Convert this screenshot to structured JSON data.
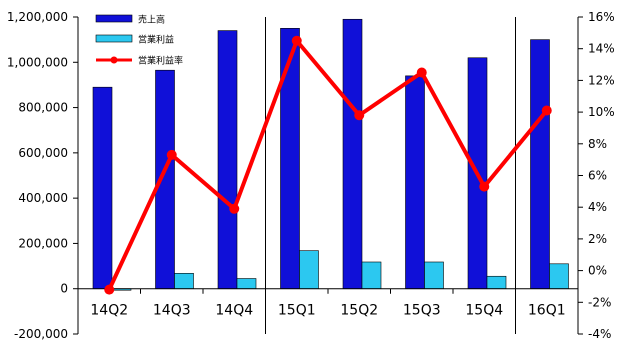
{
  "chart_data": {
    "type": "bar",
    "categories": [
      "14Q2",
      "14Q3",
      "14Q4",
      "15Q1",
      "15Q2",
      "15Q3",
      "15Q4",
      "16Q1"
    ],
    "series": [
      {
        "name": "売上高",
        "type": "bar",
        "axis": "left",
        "color": "#1010d8",
        "values": [
          890000,
          965000,
          1140000,
          1150000,
          1190000,
          940000,
          1020000,
          1100000
        ]
      },
      {
        "name": "営業利益",
        "type": "bar",
        "axis": "left",
        "color": "#2cc8f0",
        "values": [
          -5000,
          68000,
          45000,
          168000,
          118000,
          118000,
          55000,
          110000
        ]
      },
      {
        "name": "営業利益率",
        "type": "line",
        "axis": "right",
        "color": "#ff0000",
        "values": [
          -1.2,
          7.3,
          3.9,
          14.5,
          9.8,
          12.5,
          5.3,
          10.1
        ]
      }
    ],
    "y_left": {
      "ylim": [
        -200000,
        1200000
      ],
      "ticks": [
        -200000,
        0,
        200000,
        400000,
        600000,
        800000,
        1000000,
        1200000
      ],
      "tick_labels": [
        "-200,000",
        "0",
        "200,000",
        "400,000",
        "600,000",
        "800,000",
        "1,000,000",
        "1,200,000"
      ]
    },
    "y_right": {
      "ylim": [
        -4,
        16
      ],
      "ticks": [
        -4,
        -2,
        0,
        2,
        4,
        6,
        8,
        10,
        12,
        14,
        16
      ],
      "tick_labels": [
        "-4%",
        "-2%",
        "0%",
        "2%",
        "4%",
        "6%",
        "8%",
        "10%",
        "12%",
        "14%",
        "16%"
      ]
    },
    "separators_after": [
      "14Q4",
      "15Q4"
    ],
    "legend": {
      "position": "top-left"
    },
    "grid": false
  }
}
